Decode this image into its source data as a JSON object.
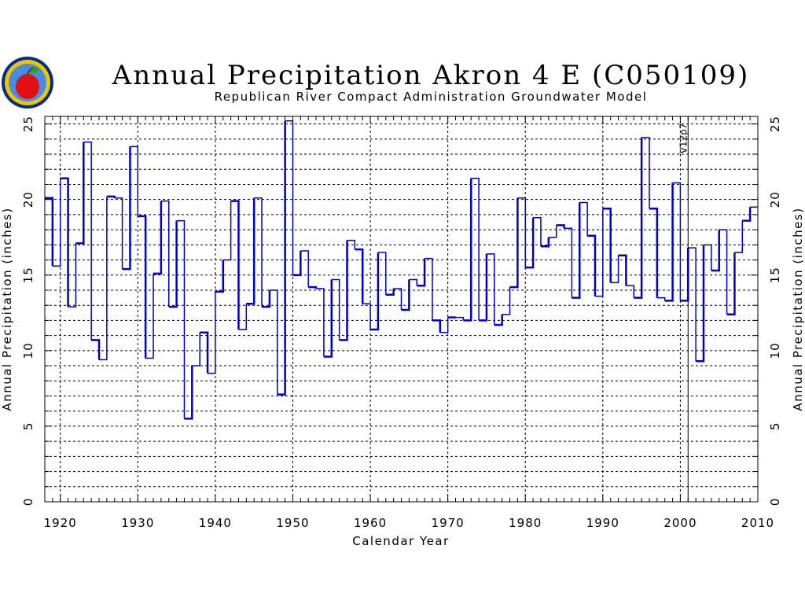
{
  "chart_data": {
    "type": "line",
    "step": true,
    "title": "Annual Precipitation Akron 4 E (C050109)",
    "subtitle": "Republican River Compact Administration Groundwater Model",
    "xlabel": "Calendar Year",
    "ylabel": "Annual Precipitation (inches)",
    "ylabel_right": "Annual Precipitation (inches)",
    "xlim": [
      1918,
      2010
    ],
    "ylim": [
      0,
      25.5
    ],
    "x_ticks": [
      1920,
      1930,
      1940,
      1950,
      1960,
      1970,
      1980,
      1990,
      2000,
      2010
    ],
    "y_ticks": [
      0,
      5,
      10,
      15,
      20,
      25
    ],
    "grid": true,
    "series_color": "#0000cc",
    "annotation": {
      "label": "V12p7",
      "x": 2001
    },
    "series": [
      {
        "x": [
          1918,
          1919,
          1920,
          1921,
          1922,
          1923,
          1924,
          1925,
          1926,
          1927,
          1928,
          1929,
          1930,
          1931,
          1932,
          1933,
          1934,
          1935,
          1936,
          1937,
          1938,
          1939,
          1940,
          1941,
          1942,
          1943,
          1944,
          1945,
          1946,
          1947,
          1948,
          1949,
          1950,
          1951,
          1952,
          1953,
          1954,
          1955,
          1956,
          1957,
          1958,
          1959,
          1960,
          1961,
          1962,
          1963,
          1964,
          1965,
          1966,
          1967,
          1968,
          1969,
          1970,
          1971,
          1972,
          1973,
          1974,
          1975,
          1976,
          1977,
          1978,
          1979,
          1980,
          1981,
          1982,
          1983,
          1984,
          1985,
          1986,
          1987,
          1988,
          1989,
          1990,
          1991,
          1992,
          1993,
          1994,
          1995,
          1996,
          1997,
          1998,
          1999,
          2000,
          2001,
          2002,
          2003,
          2004,
          2005,
          2006,
          2007,
          2008,
          2009
        ],
        "values": [
          20.1,
          15.6,
          21.4,
          12.9,
          17.1,
          23.8,
          10.7,
          9.4,
          20.2,
          20.1,
          15.4,
          23.5,
          18.9,
          9.5,
          15.1,
          19.9,
          12.9,
          18.6,
          5.5,
          9.0,
          11.2,
          8.5,
          13.9,
          16.0,
          19.9,
          11.4,
          13.1,
          20.1,
          12.9,
          14.0,
          7.1,
          25.2,
          15.0,
          16.6,
          14.2,
          14.1,
          9.6,
          14.7,
          10.7,
          17.3,
          16.7,
          13.1,
          11.4,
          16.5,
          13.7,
          14.1,
          12.7,
          14.7,
          14.3,
          16.1,
          12.0,
          11.2,
          12.2,
          12.2,
          12.0,
          21.4,
          12.0,
          16.4,
          11.7,
          12.4,
          14.2,
          20.1,
          15.5,
          18.8,
          16.9,
          17.5,
          18.3,
          18.1,
          13.5,
          19.8,
          17.6,
          13.6,
          19.4,
          14.5,
          16.3,
          14.3,
          13.5,
          24.1,
          19.4,
          13.5,
          13.3,
          21.1,
          13.3,
          16.8,
          9.3,
          17.0,
          15.3,
          18.0,
          12.4,
          16.5,
          18.6,
          19.5
        ]
      }
    ]
  }
}
